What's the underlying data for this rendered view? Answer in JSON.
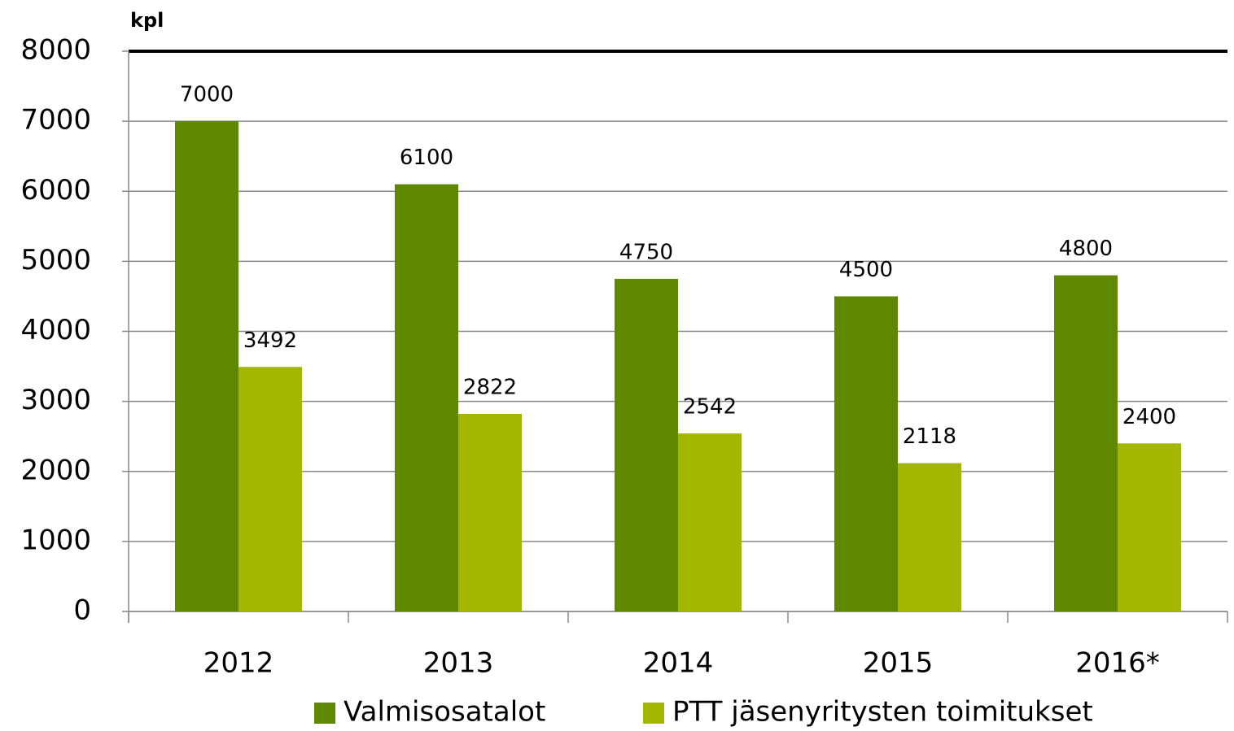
{
  "chart_data": {
    "type": "bar",
    "y_label": "kpl",
    "categories": [
      "2012",
      "2013",
      "2014",
      "2015",
      "2016*"
    ],
    "series": [
      {
        "name": "Valmisosatalot",
        "color": "#5f8700",
        "values": [
          7000,
          6100,
          4750,
          4500,
          4800
        ]
      },
      {
        "name": "PTT jäsenyritysten toimitukset",
        "color": "#a3b600",
        "values": [
          3492,
          2822,
          2542,
          2118,
          2400
        ]
      }
    ],
    "ylim": [
      0,
      8000
    ],
    "yticks": [
      0,
      1000,
      2000,
      3000,
      4000,
      5000,
      6000,
      7000,
      8000
    ],
    "grid": true,
    "legend": "bottom"
  }
}
